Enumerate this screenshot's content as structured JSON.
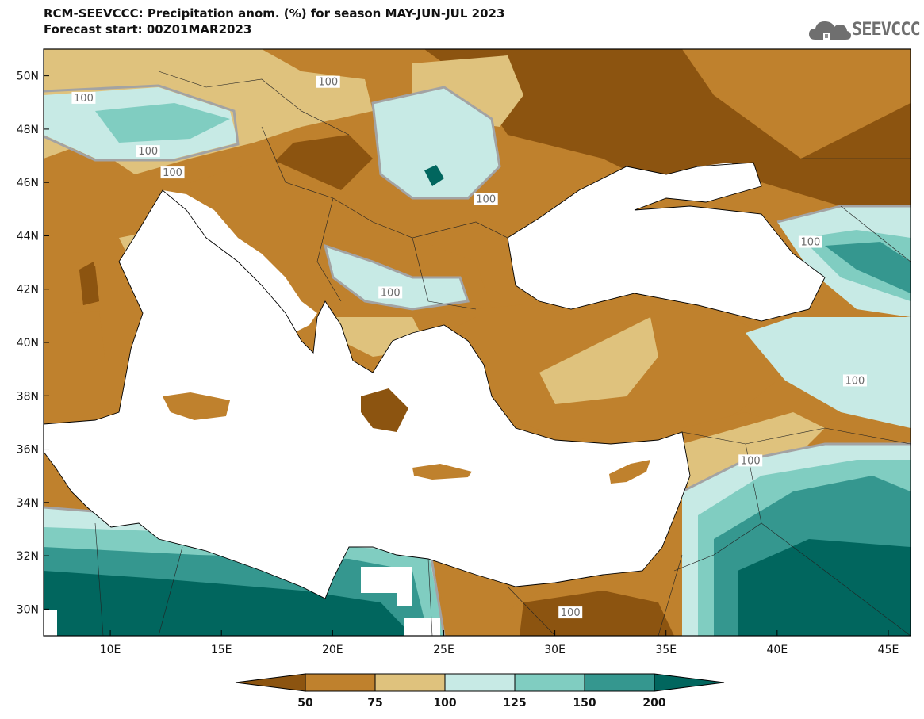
{
  "title_line1": "RCM-SEEVCCC: Precipitation anom. (%) for season MAY-JUN-JUL 2023",
  "title_line2": "Forecast start: 00Z01MAR2023",
  "logo_text": "SEEVCCC",
  "map": {
    "lon_range": [
      7,
      46
    ],
    "lat_range": [
      29,
      51
    ],
    "lon_ticks": [
      {
        "v": 10,
        "label": "10E"
      },
      {
        "v": 15,
        "label": "15E"
      },
      {
        "v": 20,
        "label": "20E"
      },
      {
        "v": 25,
        "label": "25E"
      },
      {
        "v": 30,
        "label": "30E"
      },
      {
        "v": 35,
        "label": "35E"
      },
      {
        "v": 40,
        "label": "40E"
      },
      {
        "v": 45,
        "label": "45E"
      }
    ],
    "lat_ticks": [
      {
        "v": 30,
        "label": "30N"
      },
      {
        "v": 32,
        "label": "32N"
      },
      {
        "v": 34,
        "label": "34N"
      },
      {
        "v": 36,
        "label": "36N"
      },
      {
        "v": 38,
        "label": "38N"
      },
      {
        "v": 40,
        "label": "40N"
      },
      {
        "v": 42,
        "label": "42N"
      },
      {
        "v": 44,
        "label": "44N"
      },
      {
        "v": 46,
        "label": "46N"
      },
      {
        "v": 48,
        "label": "48N"
      },
      {
        "v": 50,
        "label": "50N"
      }
    ],
    "contour_labels": [
      {
        "text": "100",
        "lon": 8.8,
        "lat": 49.1
      },
      {
        "text": "100",
        "lon": 19.8,
        "lat": 49.7
      },
      {
        "text": "100",
        "lon": 11.7,
        "lat": 47.1
      },
      {
        "text": "100",
        "lon": 12.8,
        "lat": 46.3
      },
      {
        "text": "100",
        "lon": 26.9,
        "lat": 45.3
      },
      {
        "text": "100",
        "lon": 22.6,
        "lat": 41.8
      },
      {
        "text": "100",
        "lon": 41.5,
        "lat": 43.7
      },
      {
        "text": "100",
        "lon": 43.5,
        "lat": 38.5
      },
      {
        "text": "100",
        "lon": 38.8,
        "lat": 35.5
      },
      {
        "text": "100",
        "lon": 30.7,
        "lat": 29.8
      }
    ]
  },
  "colorbar": {
    "labels": [
      "50",
      "75",
      "100",
      "125",
      "150",
      "200"
    ],
    "colors": [
      "#8c5410",
      "#bf812d",
      "#dfc27d",
      "#c7eae5",
      "#80cdc1",
      "#35978f",
      "#01665e"
    ]
  },
  "legend_colors": {
    "vlow": "#8c5410",
    "low": "#bf812d",
    "mid": "#dfc27d",
    "high": "#c7eae5",
    "vhigh": "#80cdc1",
    "xhigh": "#35978f",
    "xxhigh": "#01665e",
    "sea": "#ffffff",
    "contour": "#a3a3a3"
  }
}
